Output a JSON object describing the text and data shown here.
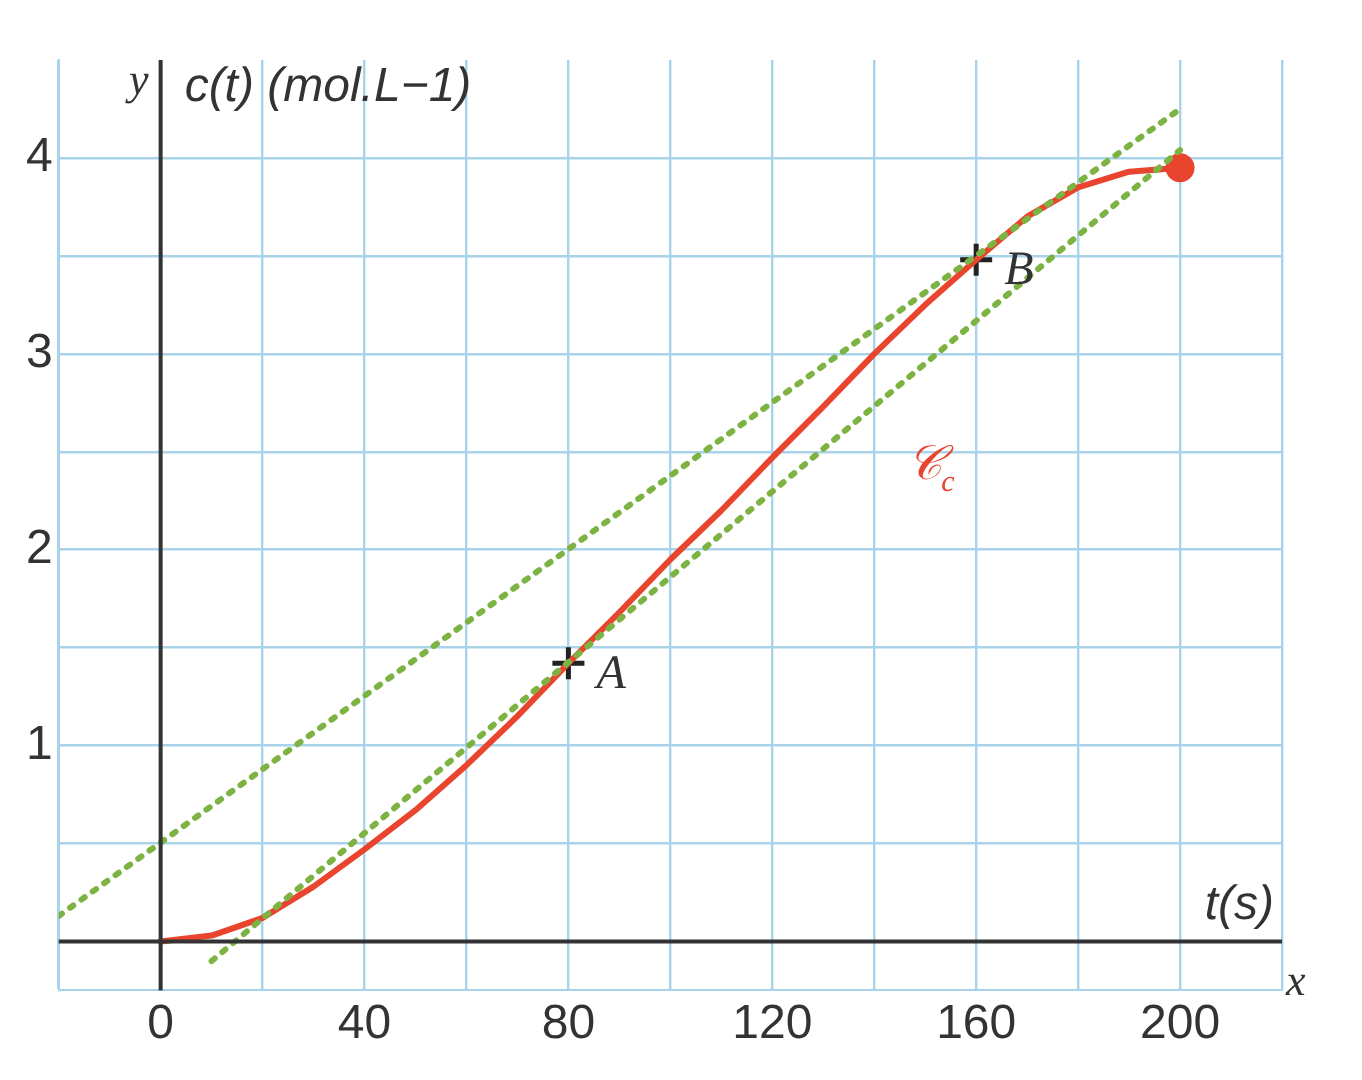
{
  "chart_data": {
    "type": "line",
    "xlabel": "t(s)",
    "ylabel": "c(t) (mol.L−1)",
    "xlim": [
      -20,
      220
    ],
    "ylim": [
      -0.25,
      4.5
    ],
    "xticks": [
      {
        "value": -20,
        "label": null
      },
      {
        "value": 0,
        "label": "0"
      },
      {
        "value": 20,
        "label": null
      },
      40,
      {
        "value": 60,
        "label": null
      },
      80,
      {
        "value": 100,
        "label": null
      },
      120,
      {
        "value": 140,
        "label": null
      },
      160,
      {
        "value": 180,
        "label": null
      },
      200,
      {
        "value": 220,
        "label": null
      }
    ],
    "yticks": [
      {
        "value": 0,
        "label": null
      },
      {
        "value": 0.5,
        "label": null
      },
      1,
      {
        "value": 1.5,
        "label": null
      },
      2,
      {
        "value": 2.5,
        "label": null
      },
      3,
      {
        "value": 3.5,
        "label": null
      },
      4
    ],
    "grid": true,
    "legend": false,
    "series": [
      {
        "type": "line",
        "color": "#7cb342",
        "line_style": "dotted",
        "marker": "none",
        "x": [
          -20,
          200
        ],
        "values": [
          0.13,
          4.25
        ]
      },
      {
        "type": "line",
        "color": "#7cb342",
        "line_style": "dotted",
        "marker": "none",
        "x": [
          10,
          200
        ],
        "values": [
          -0.1,
          4.04
        ]
      },
      {
        "type": "line",
        "color": "#e8442e",
        "line_style": "solid",
        "marker": "none",
        "x": [
          0,
          10,
          20,
          30,
          40,
          50,
          60,
          70,
          80,
          90,
          100,
          110,
          120,
          130,
          140,
          150,
          160,
          170,
          180,
          190,
          200
        ],
        "values": [
          0,
          0.03,
          0.12,
          0.28,
          0.47,
          0.67,
          0.9,
          1.15,
          1.42,
          1.68,
          1.95,
          2.2,
          2.47,
          2.73,
          3.0,
          3.25,
          3.48,
          3.7,
          3.85,
          3.93,
          3.95
        ]
      },
      {
        "type": "scatter",
        "color": "#e8442e",
        "marker": "circle",
        "x": [
          200
        ],
        "values": [
          3.95
        ]
      },
      {
        "type": "scatter",
        "color": "#222222",
        "marker": "cross",
        "x": [
          80,
          160
        ],
        "values": [
          1.42,
          3.48
        ]
      }
    ],
    "annotations": [
      {
        "text": "A",
        "x": 80,
        "y": 1.42
      },
      {
        "text": "B",
        "x": 160,
        "y": 3.48
      },
      {
        "text": "𝒞$_{c}$",
        "x": 130,
        "y": 2.73
      },
      "x",
      "y"
    ]
  }
}
